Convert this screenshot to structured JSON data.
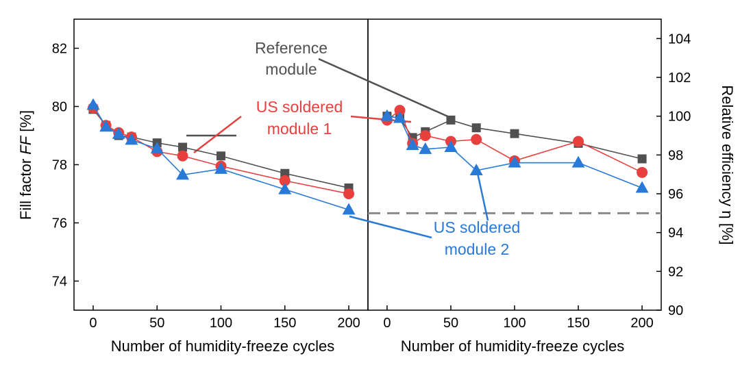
{
  "chart_data": [
    {
      "type": "line",
      "panel": "left",
      "xlabel": "Number of humidity-freeze cycles",
      "ylabel_plain": "Fill factor ",
      "ylabel_italic": "FF",
      "ylabel_unit": " [%]",
      "xlim": [
        -15,
        215
      ],
      "ylim": [
        73,
        83
      ],
      "xticks": [
        0,
        50,
        100,
        150,
        200
      ],
      "yticks": [
        74,
        76,
        78,
        80,
        82
      ],
      "series": [
        {
          "name": "Reference module",
          "marker": "square",
          "color": "#505050",
          "x": [
            0,
            10,
            20,
            30,
            50,
            70,
            100,
            150,
            200
          ],
          "values": [
            79.9,
            79.35,
            79.0,
            78.95,
            78.75,
            78.6,
            78.3,
            77.7,
            77.2
          ]
        },
        {
          "name": "US soldered module 1",
          "marker": "circle",
          "color": "#e8403f",
          "x": [
            0,
            10,
            20,
            30,
            50,
            70,
            100,
            150,
            200
          ],
          "values": [
            79.95,
            79.35,
            79.1,
            78.95,
            78.45,
            78.3,
            77.95,
            77.45,
            77.0
          ]
        },
        {
          "name": "US soldered module 2",
          "marker": "triangle",
          "color": "#2979d6",
          "x": [
            0,
            10,
            20,
            30,
            50,
            70,
            100,
            150,
            200
          ],
          "values": [
            80.05,
            79.3,
            79.05,
            78.85,
            78.55,
            77.65,
            77.85,
            77.15,
            76.45
          ]
        }
      ]
    },
    {
      "type": "line",
      "panel": "right",
      "xlabel": "Number of humidity-freeze cycles",
      "ylabel": "Relative efficiency η [%]",
      "xlim": [
        -15,
        215
      ],
      "ylim": [
        90,
        105
      ],
      "xticks": [
        0,
        50,
        100,
        150,
        200
      ],
      "yticks": [
        90,
        92,
        94,
        96,
        98,
        100,
        102,
        104
      ],
      "reference_line": 95,
      "series": [
        {
          "name": "Reference module",
          "marker": "square",
          "color": "#505050",
          "x": [
            0,
            10,
            20,
            30,
            50,
            70,
            100,
            150,
            200
          ],
          "values": [
            100.0,
            99.9,
            98.9,
            99.2,
            99.8,
            99.4,
            99.1,
            98.6,
            97.8
          ]
        },
        {
          "name": "US soldered module 1",
          "marker": "circle",
          "color": "#e8403f",
          "x": [
            0,
            10,
            20,
            30,
            50,
            70,
            100,
            150,
            200
          ],
          "values": [
            99.8,
            100.3,
            98.6,
            99.0,
            98.7,
            98.8,
            97.7,
            98.7,
            97.1
          ]
        },
        {
          "name": "US soldered module 2",
          "marker": "triangle",
          "color": "#2979d6",
          "x": [
            0,
            10,
            20,
            30,
            50,
            70,
            100,
            150,
            200
          ],
          "values": [
            100.0,
            99.9,
            98.5,
            98.3,
            98.4,
            97.2,
            97.6,
            97.6,
            96.3
          ]
        }
      ]
    }
  ],
  "annotations": {
    "reference": {
      "line1": "Reference",
      "line2": "module",
      "color": "#505050"
    },
    "us1": {
      "line1": "US soldered",
      "line2": "module 1",
      "color": "#e8403f"
    },
    "us2": {
      "line1": "US soldered",
      "line2": "module 2",
      "color": "#2979d6"
    }
  }
}
